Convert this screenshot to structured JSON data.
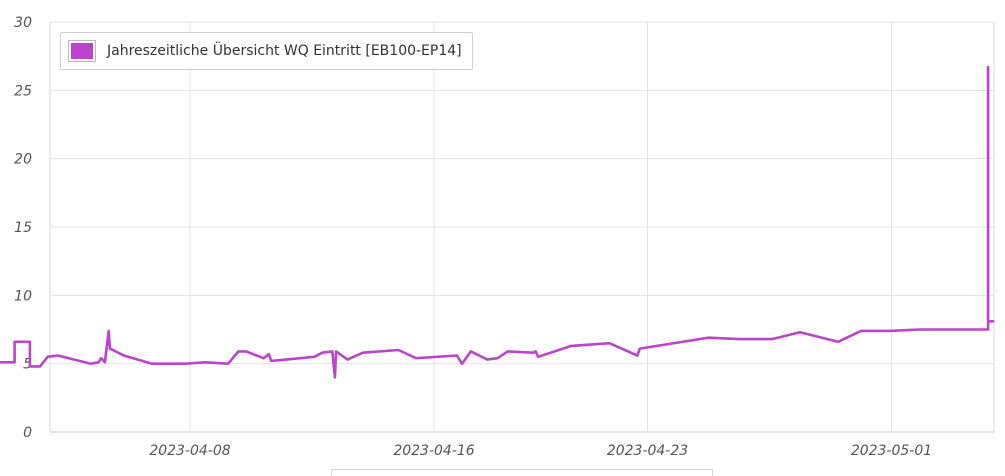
{
  "chart_data": {
    "type": "line",
    "legend_position": "top-left",
    "grid": true,
    "ylim": [
      0,
      30
    ],
    "y_ticks": [
      0,
      5,
      10,
      15,
      20,
      25,
      30
    ],
    "xlim": [
      "2023-04-01T00:00",
      "2023-05-04T00:00"
    ],
    "x_ticks": [
      "2023-04-08",
      "2023-04-16",
      "2023-04-23",
      "2023-05-01"
    ],
    "series": [
      {
        "name": "Jahreszeitliche Übersicht WQ Eintritt [EB100-EP14]",
        "color": "#bb44cc",
        "points": [
          [
            "2023-04-01T00:00",
            6.5
          ],
          [
            "2023-04-01T17:00",
            6.5
          ],
          [
            "2023-04-01T17:00",
            5.1
          ],
          [
            "2023-04-02T06:00",
            5.1
          ],
          [
            "2023-04-02T06:00",
            6.6
          ],
          [
            "2023-04-02T18:00",
            6.6
          ],
          [
            "2023-04-02T18:00",
            4.8
          ],
          [
            "2023-04-03T02:00",
            4.8
          ],
          [
            "2023-04-03T08:00",
            5.5
          ],
          [
            "2023-04-03T16:00",
            5.6
          ],
          [
            "2023-04-04T18:00",
            5.0
          ],
          [
            "2023-04-05T00:00",
            5.1
          ],
          [
            "2023-04-05T02:00",
            5.4
          ],
          [
            "2023-04-05T05:00",
            5.1
          ],
          [
            "2023-04-05T08:00",
            7.4
          ],
          [
            "2023-04-05T09:00",
            6.1
          ],
          [
            "2023-04-05T20:00",
            5.6
          ],
          [
            "2023-04-06T18:00",
            5.0
          ],
          [
            "2023-04-07T20:00",
            5.0
          ],
          [
            "2023-04-08T12:00",
            5.1
          ],
          [
            "2023-04-09T06:00",
            5.0
          ],
          [
            "2023-04-09T14:00",
            5.9
          ],
          [
            "2023-04-09T20:00",
            5.9
          ],
          [
            "2023-04-10T10:00",
            5.4
          ],
          [
            "2023-04-10T14:00",
            5.7
          ],
          [
            "2023-04-10T16:00",
            5.2
          ],
          [
            "2023-04-12T02:00",
            5.5
          ],
          [
            "2023-04-12T08:00",
            5.8
          ],
          [
            "2023-04-12T16:00",
            5.9
          ],
          [
            "2023-04-12T18:00",
            4.0
          ],
          [
            "2023-04-12T19:00",
            5.9
          ],
          [
            "2023-04-13T04:00",
            5.3
          ],
          [
            "2023-04-13T16:00",
            5.8
          ],
          [
            "2023-04-14T20:00",
            6.0
          ],
          [
            "2023-04-15T10:00",
            5.4
          ],
          [
            "2023-04-16T18:00",
            5.6
          ],
          [
            "2023-04-16T22:00",
            5.0
          ],
          [
            "2023-04-17T05:00",
            5.9
          ],
          [
            "2023-04-17T18:00",
            5.3
          ],
          [
            "2023-04-18T02:00",
            5.4
          ],
          [
            "2023-04-18T10:00",
            5.9
          ],
          [
            "2023-04-19T06:00",
            5.8
          ],
          [
            "2023-04-19T08:00",
            5.9
          ],
          [
            "2023-04-19T10:00",
            5.5
          ],
          [
            "2023-04-20T12:00",
            6.3
          ],
          [
            "2023-04-21T18:00",
            6.5
          ],
          [
            "2023-04-22T16:00",
            5.6
          ],
          [
            "2023-04-22T18:00",
            6.1
          ],
          [
            "2023-04-25T00:00",
            6.9
          ],
          [
            "2023-04-26T00:00",
            6.8
          ],
          [
            "2023-04-27T02:00",
            6.8
          ],
          [
            "2023-04-28T00:00",
            7.3
          ],
          [
            "2023-04-29T06:00",
            6.6
          ],
          [
            "2023-04-30T00:00",
            7.4
          ],
          [
            "2023-04-30T22:00",
            7.4
          ],
          [
            "2023-05-01T22:00",
            7.5
          ],
          [
            "2023-05-04T04:00",
            7.5
          ],
          [
            "2023-05-04T04:00",
            26.7
          ],
          [
            "2023-05-04T04:00",
            8.1
          ],
          [
            "2023-05-05T05:00",
            8.1
          ]
        ]
      }
    ]
  }
}
